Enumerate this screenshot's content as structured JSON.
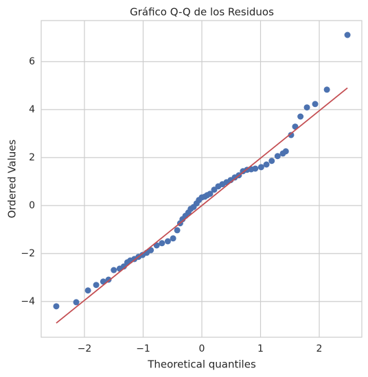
{
  "chart_data": {
    "type": "scatter",
    "title": "Gráfico Q-Q de los Residuos",
    "x_label": "Theoretical quantiles",
    "y_label": "Ordered Values",
    "xlim": [
      -2.737,
      2.725
    ],
    "ylim": [
      -5.49,
      7.71
    ],
    "xticks": [
      {
        "value": -2,
        "label": "−2"
      },
      {
        "value": -1,
        "label": "−1"
      },
      0,
      1,
      2
    ],
    "yticks": [
      {
        "value": -4,
        "label": "−4"
      },
      {
        "value": -2,
        "label": "−2"
      },
      0,
      2,
      4,
      6
    ],
    "grid": true,
    "points": {
      "color": "#4c72b0",
      "x": [
        -2.48,
        -2.14,
        -1.94,
        -1.8,
        -1.68,
        -1.59,
        -1.5,
        -1.4,
        -1.33,
        -1.27,
        -1.22,
        -1.15,
        -1.08,
        -1.01,
        -0.94,
        -0.87,
        -0.77,
        -0.68,
        -0.58,
        -0.49,
        -0.42,
        -0.37,
        -0.33,
        -0.28,
        -0.23,
        -0.19,
        -0.14,
        -0.09,
        -0.05,
        0.0,
        0.05,
        0.09,
        0.14,
        0.21,
        0.28,
        0.35,
        0.42,
        0.49,
        0.56,
        0.63,
        0.7,
        0.77,
        0.84,
        0.91,
        1.01,
        1.1,
        1.19,
        1.29,
        1.38,
        1.43,
        1.52,
        1.59,
        1.68,
        1.79,
        1.93,
        2.13,
        2.48
      ],
      "values": [
        -4.2,
        -4.03,
        -3.54,
        -3.31,
        -3.17,
        -3.09,
        -2.69,
        -2.63,
        -2.54,
        -2.37,
        -2.29,
        -2.23,
        -2.14,
        -2.06,
        -1.97,
        -1.86,
        -1.66,
        -1.57,
        -1.49,
        -1.37,
        -1.03,
        -0.74,
        -0.57,
        -0.43,
        -0.29,
        -0.14,
        -0.06,
        0.09,
        0.23,
        0.34,
        0.37,
        0.43,
        0.49,
        0.66,
        0.8,
        0.89,
        0.97,
        1.06,
        1.17,
        1.26,
        1.43,
        1.49,
        1.51,
        1.54,
        1.6,
        1.71,
        1.86,
        2.06,
        2.17,
        2.26,
        2.94,
        3.29,
        3.71,
        4.09,
        4.23,
        4.83,
        7.11
      ]
    },
    "fit_line": {
      "color": "#c44e52",
      "x": [
        -2.48,
        2.48
      ],
      "values": [
        -4.9,
        4.9
      ]
    }
  }
}
